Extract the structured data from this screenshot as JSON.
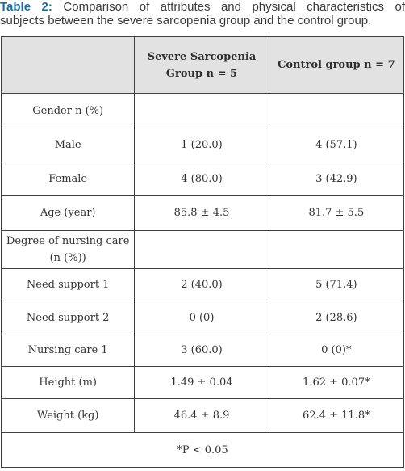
{
  "caption": {
    "label": "Table 2:",
    "line1": " Comparison of attributes and physical characteristics of",
    "line2": "subjects between the severe sarcopenia group and the control group."
  },
  "table": {
    "headers": [
      "",
      "Severe Sarcopenia Group n = 5",
      "Control group n = 7"
    ],
    "rows": [
      [
        "Gender n (%)",
        "",
        ""
      ],
      [
        "Male",
        "1 (20.0)",
        "4 (57.1)"
      ],
      [
        "Female",
        "4 (80.0)",
        "3 (42.9)"
      ],
      [
        "Age (year)",
        "85.8 ± 4.5",
        "81.7 ± 5.5"
      ],
      [
        "Degree of nursing care (n (%))",
        "",
        ""
      ],
      [
        "Need support 1",
        "2 (40.0)",
        "5 (71.4)"
      ],
      [
        "Need support 2",
        "0 (0)",
        "2 (28.6)"
      ],
      [
        "Nursing care 1",
        "3 (60.0)",
        "0 (0)*"
      ],
      [
        "Height (m)",
        "1.49 ± 0.04",
        "1.62 ± 0.07*"
      ],
      [
        "Weight (kg)",
        "46.4 ± 8.9",
        "62.4 ± 11.8*"
      ]
    ],
    "footnote": "*P < 0.05"
  }
}
